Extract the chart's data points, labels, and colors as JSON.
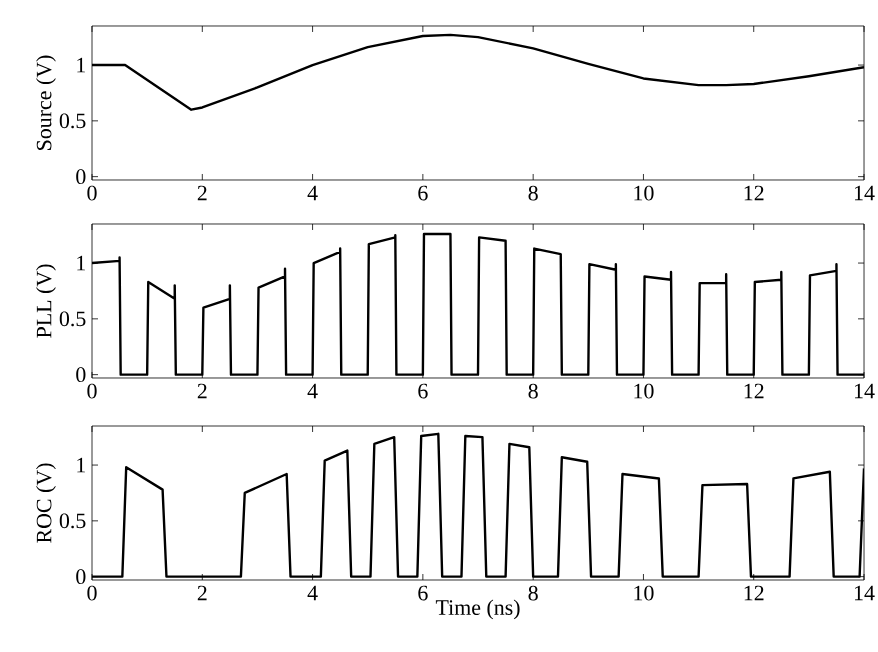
{
  "chart_data": [
    {
      "type": "line",
      "ylabel": "Source (V)",
      "xlim": [
        0,
        14
      ],
      "xticks": [
        0,
        2,
        4,
        6,
        8,
        10,
        12,
        14
      ],
      "ylim": [
        -0.03,
        1.35
      ],
      "yticks": [
        0,
        0.5,
        1
      ],
      "color": "#000000",
      "x": [
        0,
        0.6,
        1.8,
        2,
        3,
        4,
        5,
        6,
        6.5,
        7,
        8,
        9,
        10,
        11,
        11.5,
        12,
        13,
        14
      ],
      "values": [
        1,
        1,
        0.6,
        0.62,
        0.8,
        1.0,
        1.16,
        1.26,
        1.27,
        1.25,
        1.15,
        1.01,
        0.88,
        0.82,
        0.82,
        0.83,
        0.9,
        0.98
      ]
    },
    {
      "type": "line",
      "ylabel": "PLL (V)",
      "xlim": [
        0,
        14
      ],
      "xticks": [
        0,
        2,
        4,
        6,
        8,
        10,
        12,
        14
      ],
      "ylim": [
        -0.03,
        1.35
      ],
      "yticks": [
        0,
        0.5,
        1
      ],
      "color": "#000000",
      "x": [
        0,
        0.5,
        0.5,
        0.52,
        1,
        1.02,
        1.5,
        1.5,
        1.52,
        2,
        2.02,
        2.5,
        2.5,
        2.52,
        3,
        3.02,
        3.5,
        3.5,
        3.52,
        4,
        4.02,
        4.5,
        4.5,
        4.52,
        5,
        5.02,
        5.5,
        5.5,
        5.52,
        6,
        6.02,
        6.5,
        6.52,
        7,
        7.02,
        7.5,
        7.52,
        8,
        8.02,
        8.5,
        8.52,
        9,
        9.02,
        9.5,
        9.5,
        9.52,
        10,
        10.02,
        10.5,
        10.5,
        10.52,
        11,
        11.02,
        11.5,
        11.5,
        11.52,
        12,
        12.02,
        12.5,
        12.5,
        12.52,
        13,
        13.02,
        13.5,
        13.5,
        13.52,
        14
      ],
      "values": [
        1.0,
        1.02,
        1.05,
        0,
        0,
        0.83,
        0.68,
        0.8,
        0,
        0,
        0.6,
        0.68,
        0.8,
        0,
        0,
        0.78,
        0.88,
        0.95,
        0,
        0,
        1.0,
        1.1,
        1.13,
        0,
        0,
        1.17,
        1.23,
        1.25,
        0,
        0,
        1.26,
        1.26,
        0,
        0,
        1.23,
        1.2,
        0,
        0,
        1.13,
        1.08,
        0,
        0,
        0.99,
        0.94,
        0.99,
        0,
        0,
        0.88,
        0.85,
        0.92,
        0,
        0,
        0.82,
        0.82,
        0.9,
        0,
        0,
        0.83,
        0.85,
        0.92,
        0,
        0,
        0.89,
        0.93,
        0.99,
        0,
        0
      ]
    },
    {
      "type": "line",
      "ylabel": "ROC (V)",
      "xlabel": "Time (ns)",
      "xlim": [
        0,
        14
      ],
      "xticks": [
        0,
        2,
        4,
        6,
        8,
        10,
        12,
        14
      ],
      "ylim": [
        -0.03,
        1.35
      ],
      "yticks": [
        0,
        0.5,
        1
      ],
      "color": "#000000",
      "x": [
        0,
        0.55,
        0.62,
        1.28,
        1.35,
        2.7,
        2.77,
        3.53,
        3.6,
        4.15,
        4.22,
        4.63,
        4.7,
        5.05,
        5.12,
        5.48,
        5.55,
        5.9,
        5.97,
        6.28,
        6.35,
        6.7,
        6.77,
        7.08,
        7.15,
        7.5,
        7.57,
        7.93,
        8.0,
        8.45,
        8.52,
        8.98,
        9.05,
        9.55,
        9.62,
        10.28,
        10.35,
        11.0,
        11.07,
        11.88,
        11.95,
        12.65,
        12.72,
        13.38,
        13.45,
        13.92,
        14
      ],
      "values": [
        0,
        0,
        0.98,
        0.78,
        0,
        0,
        0.75,
        0.92,
        0,
        0,
        1.04,
        1.13,
        0,
        0,
        1.19,
        1.25,
        0,
        0,
        1.26,
        1.28,
        0,
        0,
        1.26,
        1.25,
        0,
        0,
        1.19,
        1.16,
        0,
        0,
        1.07,
        1.03,
        0,
        0,
        0.92,
        0.88,
        0,
        0,
        0.82,
        0.83,
        0,
        0,
        0.88,
        0.94,
        0,
        0,
        0.97
      ]
    }
  ]
}
